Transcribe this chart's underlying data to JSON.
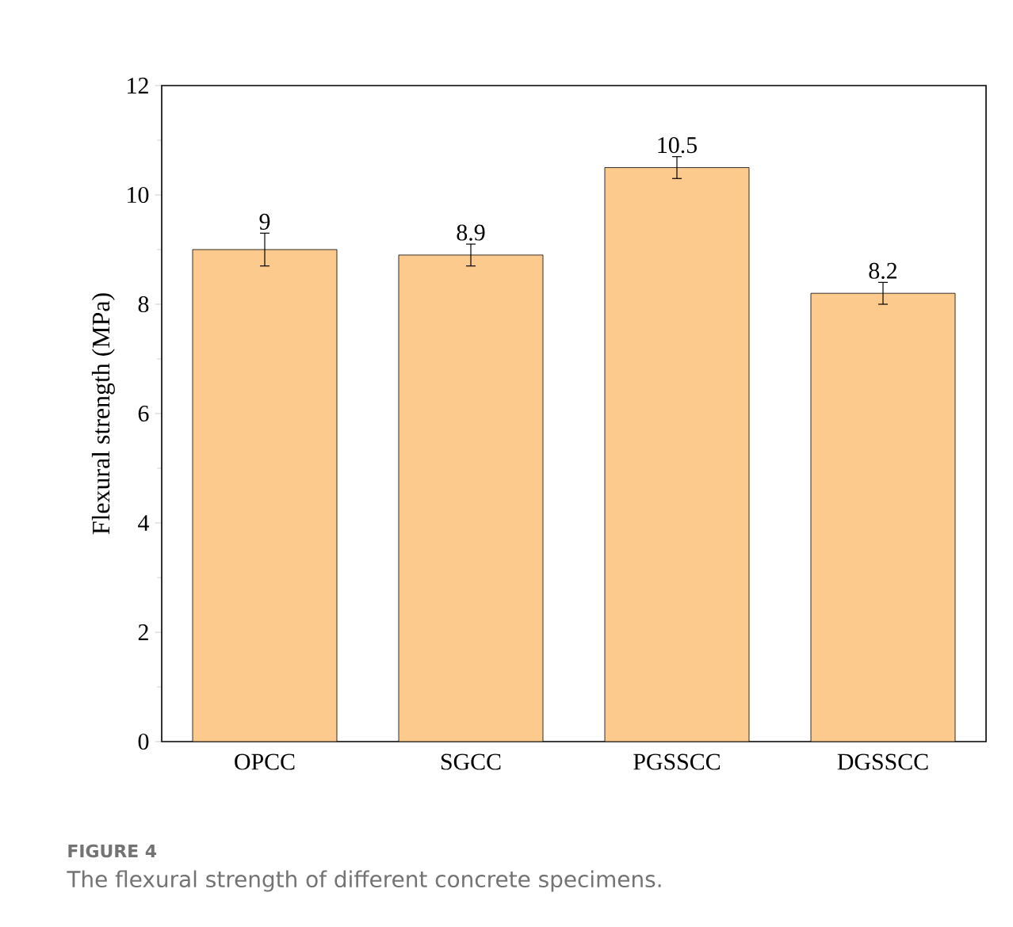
{
  "chart_data": {
    "type": "bar",
    "ylabel": "Flexural strength (MPa)",
    "categories": [
      "OPCC",
      "SGCC",
      "PGSSCC",
      "DGSSCC"
    ],
    "values": [
      9,
      8.9,
      10.5,
      8.2
    ],
    "errors": [
      0.3,
      0.2,
      0.2,
      0.2
    ],
    "color": "#fdca8e",
    "ylim": [
      0,
      12
    ],
    "yticks": [
      0,
      2,
      4,
      6,
      8,
      10,
      12
    ],
    "data_labels": true,
    "annotations": [
      "FIGURE 4",
      "The flexural strength of different concrete specimens."
    ]
  }
}
